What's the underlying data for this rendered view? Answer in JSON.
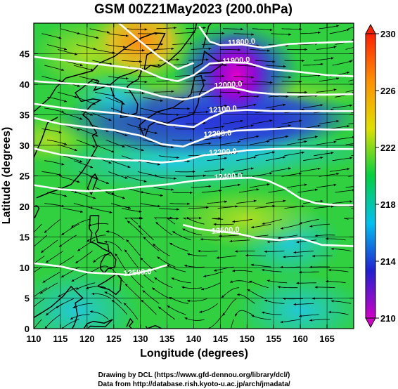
{
  "chart_data": {
    "type": "heatmap",
    "title": "GSM 00Z21May2023 (200.0hPa)",
    "xlabel": "Longitude (degrees)",
    "ylabel": "Latitude (degrees)",
    "xlim": [
      110,
      170
    ],
    "ylim": [
      0,
      50
    ],
    "x_ticks": [
      110,
      115,
      120,
      125,
      130,
      135,
      140,
      145,
      150,
      155,
      160,
      165
    ],
    "y_ticks": [
      0,
      5,
      10,
      15,
      20,
      25,
      30,
      35,
      40,
      45
    ],
    "grid": true,
    "colorbar": {
      "range": [
        210,
        230
      ],
      "ticks": [
        210,
        214,
        218,
        222,
        226,
        230
      ],
      "colors": [
        "#d000c8",
        "#2020d0",
        "#00c0f0",
        "#00d040",
        "#e0e000",
        "#ff9000",
        "#ff2000"
      ]
    },
    "contour_labels": [
      {
        "text": "11800.0",
        "lon": 149,
        "lat": 46.5
      },
      {
        "text": "11900.0",
        "lon": 148,
        "lat": 43.5
      },
      {
        "text": "12000.0",
        "lon": 146.5,
        "lat": 39.5
      },
      {
        "text": "12100.0",
        "lon": 145.5,
        "lat": 35.5
      },
      {
        "text": "12200.0",
        "lon": 144.5,
        "lat": 31.5
      },
      {
        "text": "12300.0",
        "lon": 145.5,
        "lat": 28.5
      },
      {
        "text": "12400.0",
        "lon": 146.5,
        "lat": 24.5
      },
      {
        "text": "12500.0",
        "lon": 146,
        "lat": 15.7
      },
      {
        "text": "12500.0",
        "lon": 129.5,
        "lat": 8.8
      }
    ]
  },
  "footer": {
    "line1": "Drawing by DCL (https://www.gfd-dennou.org/library/dcl/)",
    "line2": "Data from http://database.rish.kyoto-u.ac.jp/arch/jmadata/"
  }
}
